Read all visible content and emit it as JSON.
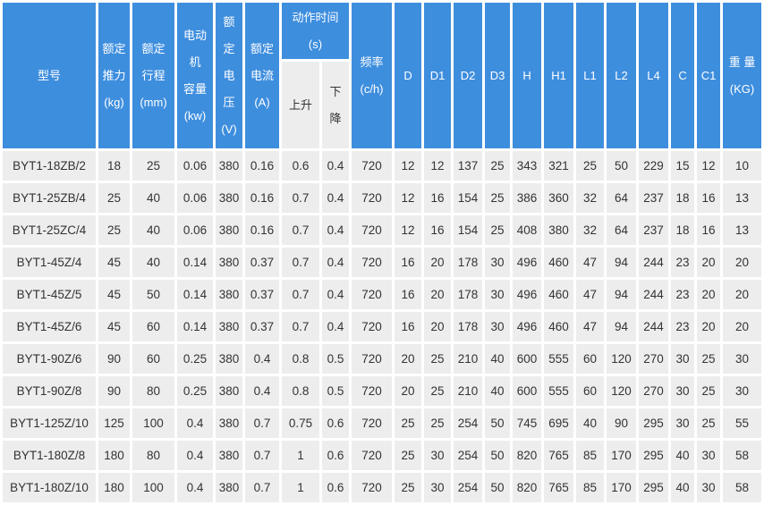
{
  "colors": {
    "header_bg": "#3E8EDE",
    "header_text": "#FFFFFF",
    "row_bg": "#EDEDED",
    "cell_text": "#333333",
    "grid_gap": "#FFFFFF"
  },
  "table": {
    "header": {
      "model": "型号",
      "rated_thrust": "额定\n推力\n(kg)",
      "rated_stroke": "额定\n行程\n(mm)",
      "motor_capacity": "电动\n机\n容量\n(kw)",
      "rated_voltage": "额\n定\n电\n压\n(V)",
      "rated_current": "额定\n电流\n(A)",
      "action_time": "动作时间\n(s)",
      "rise": "上升",
      "fall": "下\n降",
      "frequency": "频率\n(c/h)",
      "d": "D",
      "d1": "D1",
      "d2": "D2",
      "d3": "D3",
      "h": "H",
      "h1": "H1",
      "l1": "L1",
      "l2": "L2",
      "l4": "L4",
      "c": "C",
      "c1": "C1",
      "weight": "重 量\n(KG)"
    },
    "rows": [
      {
        "model": "BYT1-18ZB/2",
        "values": [
          "18",
          "25",
          "0.06",
          "380",
          "0.16",
          "0.6",
          "0.4",
          "720",
          "12",
          "12",
          "137",
          "25",
          "343",
          "321",
          "25",
          "50",
          "229",
          "15",
          "12",
          "10"
        ]
      },
      {
        "model": "BYT1-25ZB/4",
        "values": [
          "25",
          "40",
          "0.06",
          "380",
          "0.16",
          "0.7",
          "0.4",
          "720",
          "12",
          "16",
          "154",
          "25",
          "386",
          "360",
          "32",
          "64",
          "237",
          "18",
          "16",
          "13"
        ]
      },
      {
        "model": "BYT1-25ZC/4",
        "values": [
          "25",
          "40",
          "0.06",
          "380",
          "0.16",
          "0.7",
          "0.4",
          "720",
          "12",
          "16",
          "154",
          "25",
          "408",
          "380",
          "32",
          "64",
          "237",
          "18",
          "16",
          "13"
        ]
      },
      {
        "model": "BYT1-45Z/4",
        "values": [
          "45",
          "40",
          "0.14",
          "380",
          "0.37",
          "0.7",
          "0.4",
          "720",
          "16",
          "20",
          "178",
          "30",
          "496",
          "460",
          "47",
          "94",
          "244",
          "23",
          "20",
          "20"
        ]
      },
      {
        "model": "BYT1-45Z/5",
        "values": [
          "45",
          "50",
          "0.14",
          "380",
          "0.37",
          "0.7",
          "0.4",
          "720",
          "16",
          "20",
          "178",
          "30",
          "496",
          "460",
          "47",
          "94",
          "244",
          "23",
          "20",
          "20"
        ]
      },
      {
        "model": "BYT1-45Z/6",
        "values": [
          "45",
          "60",
          "0.14",
          "380",
          "0.37",
          "0.7",
          "0.4",
          "720",
          "16",
          "20",
          "178",
          "30",
          "496",
          "460",
          "47",
          "94",
          "244",
          "23",
          "20",
          "20"
        ]
      },
      {
        "model": "BYT1-90Z/6",
        "values": [
          "90",
          "60",
          "0.25",
          "380",
          "0.4",
          "0.8",
          "0.5",
          "720",
          "20",
          "25",
          "210",
          "40",
          "600",
          "555",
          "60",
          "120",
          "270",
          "30",
          "25",
          "30"
        ]
      },
      {
        "model": "BYT1-90Z/8",
        "values": [
          "90",
          "80",
          "0.25",
          "380",
          "0.4",
          "0.8",
          "0.5",
          "720",
          "20",
          "25",
          "210",
          "40",
          "600",
          "555",
          "60",
          "120",
          "270",
          "30",
          "25",
          "30"
        ]
      },
      {
        "model": "BYT1-125Z/10",
        "values": [
          "125",
          "100",
          "0.4",
          "380",
          "0.7",
          "0.75",
          "0.6",
          "720",
          "25",
          "25",
          "254",
          "50",
          "745",
          "695",
          "40",
          "90",
          "295",
          "30",
          "25",
          "55"
        ]
      },
      {
        "model": "BYT1-180Z/8",
        "values": [
          "180",
          "80",
          "0.4",
          "380",
          "0.7",
          "1",
          "0.6",
          "720",
          "25",
          "30",
          "254",
          "50",
          "820",
          "765",
          "85",
          "170",
          "295",
          "40",
          "30",
          "58"
        ]
      },
      {
        "model": "BYT1-180Z/10",
        "values": [
          "180",
          "100",
          "0.4",
          "380",
          "0.7",
          "1",
          "0.6",
          "720",
          "25",
          "30",
          "254",
          "50",
          "820",
          "765",
          "85",
          "170",
          "295",
          "40",
          "30",
          "58"
        ]
      }
    ]
  }
}
